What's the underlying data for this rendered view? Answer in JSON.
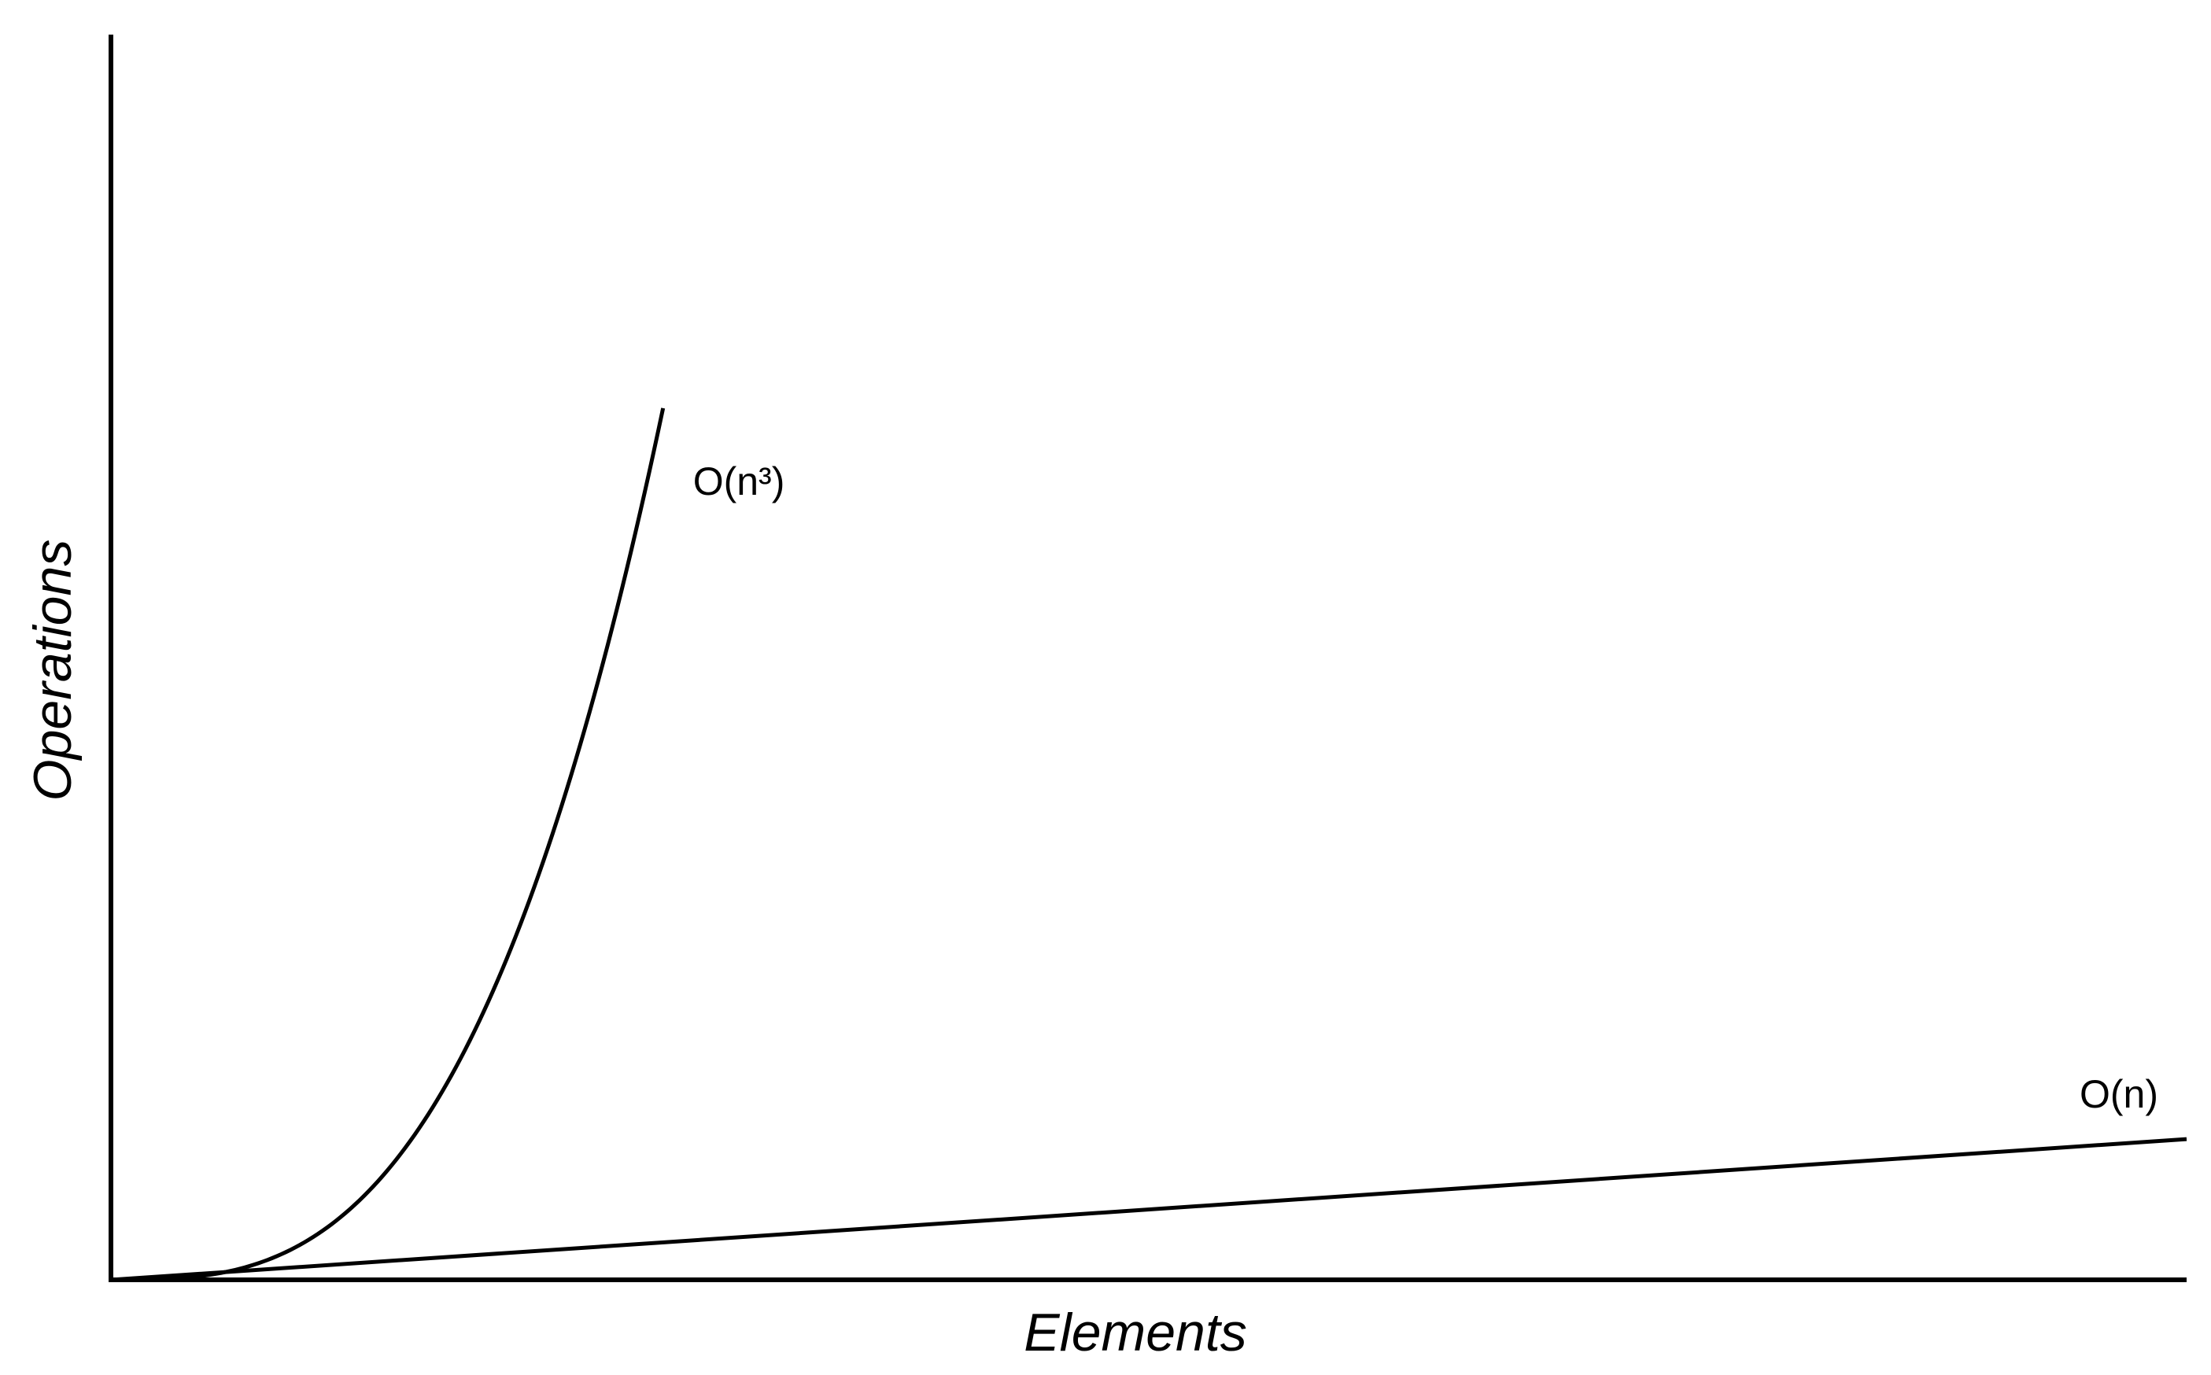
{
  "chart_data": {
    "type": "line",
    "title": "",
    "xlabel": "Elements",
    "ylabel": "Operations",
    "xlim": [
      0,
      1
    ],
    "ylim": [
      0,
      1
    ],
    "grid": false,
    "legend": "none",
    "series": [
      {
        "name": "O(n³)",
        "growth": "cubic",
        "x": [
          0,
          0.05,
          0.1,
          0.15,
          0.2,
          0.25,
          0.266
        ],
        "y": [
          0,
          0.0047,
          0.0377,
          0.1273,
          0.3016,
          0.589,
          0.7
        ]
      },
      {
        "name": "O(n)",
        "growth": "linear",
        "x": [
          0,
          1
        ],
        "y": [
          0,
          0.113
        ]
      }
    ],
    "colors": {
      "line": "#000000",
      "axis": "#000000",
      "background": "#ffffff"
    }
  }
}
